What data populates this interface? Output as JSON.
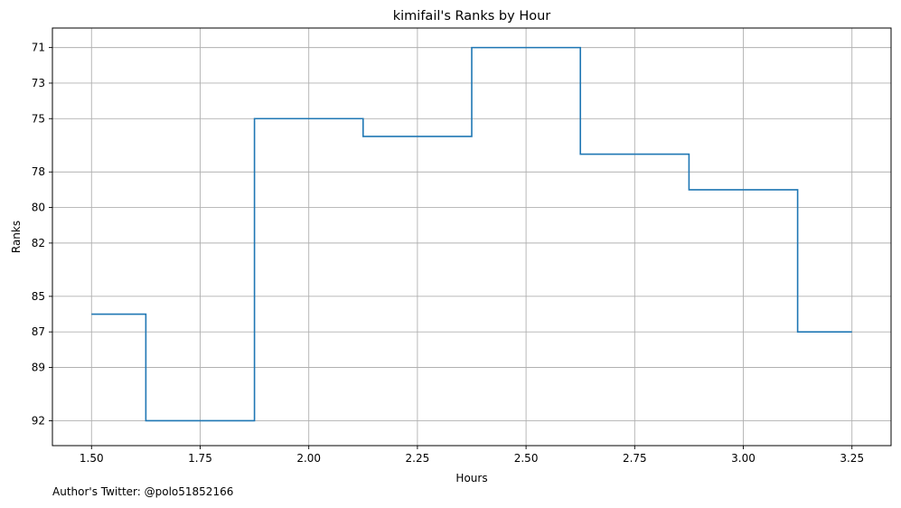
{
  "chart_data": {
    "type": "line",
    "step": "mid",
    "title": "kimifail's Ranks by Hour",
    "xlabel": "Hours",
    "ylabel": "Ranks",
    "x": [
      1.5,
      1.75,
      2.0,
      2.25,
      2.5,
      2.75,
      3.0,
      3.25
    ],
    "series": [
      {
        "values": [
          86,
          92,
          75,
          76,
          71,
          77,
          79,
          87
        ]
      }
    ],
    "xlim": [
      1.41,
      3.34
    ],
    "ylim": [
      93.4,
      69.9
    ],
    "y_inverted": true,
    "x_ticks": [
      1.5,
      1.75,
      2.0,
      2.25,
      2.5,
      2.75,
      3.0,
      3.25
    ],
    "x_tick_labels": [
      "1.50",
      "1.75",
      "2.00",
      "2.25",
      "2.50",
      "2.75",
      "3.00",
      "3.25"
    ],
    "y_ticks": [
      71,
      73,
      75,
      78,
      80,
      82,
      85,
      87,
      89,
      92
    ],
    "y_tick_labels": [
      "71",
      "73",
      "75",
      "78",
      "80",
      "82",
      "85",
      "87",
      "89",
      "92"
    ],
    "grid": true,
    "line_color": "#1f77b4"
  },
  "footnote": "Author's Twitter: @polo51852166"
}
